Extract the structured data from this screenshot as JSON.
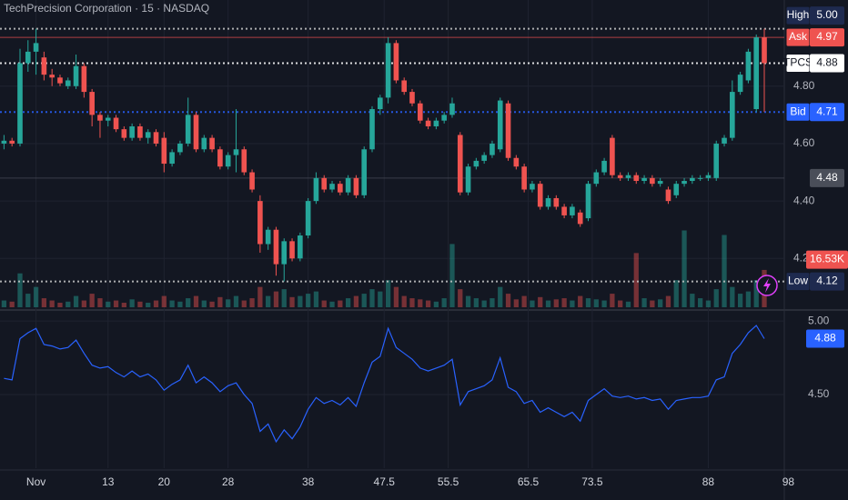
{
  "chart_data": {
    "type": "candlestick",
    "title": "TechPrecision Corporation · 15 · NASDAQ",
    "open": [
      4.6,
      4.61,
      4.6,
      4.88,
      4.92,
      4.9,
      4.84,
      4.83,
      4.8,
      4.8,
      4.87,
      4.78,
      4.7,
      4.68,
      4.69,
      4.65,
      4.62,
      4.66,
      4.62,
      4.64,
      4.62,
      4.53,
      4.57,
      4.6,
      4.7,
      4.58,
      4.62,
      4.58,
      4.52,
      4.56,
      4.58,
      4.5,
      4.4,
      4.25,
      4.3,
      4.18,
      4.26,
      4.2,
      4.28,
      4.4,
      4.48,
      4.44,
      4.46,
      4.43,
      4.48,
      4.42,
      4.58,
      4.72,
      4.76,
      4.95,
      4.82,
      4.78,
      4.74,
      4.68,
      4.66,
      4.68,
      4.7,
      4.63,
      4.43,
      4.52,
      4.54,
      4.56,
      4.58,
      4.74,
      4.55,
      4.52,
      4.44,
      4.46,
      4.38,
      4.41,
      4.38,
      4.35,
      4.36,
      4.34,
      4.46,
      4.5,
      4.62,
      4.49,
      4.48,
      4.49,
      4.47,
      4.48,
      4.46,
      4.44,
      4.42,
      4.46,
      4.47,
      4.48,
      4.48,
      4.48,
      4.6,
      4.62,
      4.78,
      4.82,
      4.72,
      4.97
    ],
    "high": [
      4.63,
      4.62,
      4.93,
      4.96,
      5.0,
      4.92,
      4.86,
      4.84,
      4.83,
      4.91,
      4.88,
      4.79,
      4.71,
      4.7,
      4.7,
      4.66,
      4.67,
      4.67,
      4.65,
      4.65,
      4.64,
      4.58,
      4.61,
      4.76,
      4.71,
      4.63,
      4.63,
      4.59,
      4.57,
      4.72,
      4.59,
      4.51,
      4.42,
      4.31,
      4.31,
      4.27,
      4.27,
      4.29,
      4.41,
      4.5,
      4.49,
      4.47,
      4.47,
      4.49,
      4.49,
      4.59,
      4.73,
      4.77,
      4.97,
      4.96,
      4.83,
      4.79,
      4.75,
      4.69,
      4.69,
      4.71,
      4.76,
      4.64,
      4.53,
      4.55,
      4.57,
      4.61,
      4.76,
      4.75,
      4.56,
      4.53,
      4.47,
      4.47,
      4.42,
      4.42,
      4.39,
      4.39,
      4.37,
      4.47,
      4.51,
      4.55,
      4.63,
      4.5,
      4.5,
      4.5,
      4.49,
      4.49,
      4.48,
      4.45,
      4.47,
      4.48,
      4.49,
      4.49,
      4.5,
      4.61,
      4.63,
      4.82,
      4.85,
      4.93,
      4.98,
      5.0
    ],
    "low": [
      4.58,
      4.59,
      4.59,
      4.85,
      4.84,
      4.82,
      4.8,
      4.8,
      4.79,
      4.79,
      4.76,
      4.66,
      4.62,
      4.66,
      4.64,
      4.61,
      4.61,
      4.61,
      4.6,
      4.59,
      4.5,
      4.52,
      4.56,
      4.59,
      4.57,
      4.57,
      4.57,
      4.51,
      4.51,
      4.5,
      4.49,
      4.43,
      4.22,
      4.23,
      4.14,
      4.12,
      4.19,
      4.19,
      4.27,
      4.39,
      4.43,
      4.43,
      4.42,
      4.42,
      4.41,
      4.41,
      4.57,
      4.7,
      4.74,
      4.81,
      4.77,
      4.73,
      4.67,
      4.65,
      4.65,
      4.67,
      4.69,
      4.42,
      4.42,
      4.51,
      4.53,
      4.55,
      4.57,
      4.54,
      4.51,
      4.43,
      4.43,
      4.37,
      4.37,
      4.37,
      4.34,
      4.34,
      4.31,
      4.33,
      4.45,
      4.49,
      4.48,
      4.47,
      4.47,
      4.46,
      4.46,
      4.45,
      4.45,
      4.39,
      4.41,
      4.45,
      4.46,
      4.47,
      4.47,
      4.47,
      4.59,
      4.61,
      4.77,
      4.81,
      4.71,
      4.71
    ],
    "close": [
      4.61,
      4.6,
      4.88,
      4.92,
      4.95,
      4.84,
      4.83,
      4.81,
      4.82,
      4.87,
      4.78,
      4.7,
      4.68,
      4.69,
      4.65,
      4.62,
      4.66,
      4.62,
      4.64,
      4.6,
      4.53,
      4.57,
      4.6,
      4.7,
      4.58,
      4.62,
      4.58,
      4.52,
      4.56,
      4.58,
      4.5,
      4.44,
      4.25,
      4.3,
      4.18,
      4.26,
      4.2,
      4.28,
      4.4,
      4.48,
      4.44,
      4.46,
      4.43,
      4.48,
      4.42,
      4.58,
      4.72,
      4.76,
      4.95,
      4.82,
      4.78,
      4.74,
      4.68,
      4.66,
      4.68,
      4.7,
      4.74,
      4.43,
      4.52,
      4.54,
      4.56,
      4.6,
      4.75,
      4.55,
      4.52,
      4.44,
      4.46,
      4.38,
      4.41,
      4.38,
      4.35,
      4.38,
      4.32,
      4.46,
      4.5,
      4.54,
      4.49,
      4.48,
      4.49,
      4.47,
      4.48,
      4.46,
      4.47,
      4.4,
      4.46,
      4.47,
      4.48,
      4.48,
      4.49,
      4.6,
      4.62,
      4.78,
      4.84,
      4.92,
      4.97,
      4.88
    ],
    "volume": [
      3000,
      2500,
      15000,
      6000,
      9000,
      4000,
      3000,
      2000,
      2500,
      5000,
      3000,
      6000,
      4000,
      2500,
      3000,
      2000,
      3500,
      2500,
      2000,
      3000,
      5000,
      3000,
      2500,
      4000,
      5000,
      3000,
      2500,
      4500,
      3500,
      5000,
      3000,
      4000,
      9000,
      5000,
      7000,
      8000,
      4500,
      5000,
      6000,
      7000,
      3000,
      2500,
      3000,
      4000,
      5000,
      6000,
      8000,
      7000,
      12000,
      9000,
      5000,
      4000,
      3500,
      3000,
      2500,
      4000,
      28000,
      8000,
      5000,
      4000,
      3000,
      4000,
      9000,
      6000,
      3500,
      5000,
      3000,
      4500,
      3000,
      3500,
      4000,
      3000,
      5000,
      4000,
      3500,
      3000,
      6000,
      3000,
      2500,
      24000,
      4000,
      3000,
      3500,
      5000,
      12000,
      34000,
      6000,
      4000,
      3000,
      8000,
      32000,
      9000,
      6000,
      7000,
      12000,
      16530
    ],
    "up_color": "#26a69a",
    "down_color": "#ef5350",
    "xlim": [
      -0.5,
      97.5
    ],
    "xticks": [
      {
        "value": 4,
        "label": "Nov"
      },
      13,
      20,
      28,
      38,
      47.5,
      55.5,
      65.5,
      73.5,
      88,
      98
    ],
    "ylim": [
      4.03,
      5.1
    ],
    "yticks": [
      {
        "value": 4.8,
        "label": "4.80"
      },
      {
        "value": 4.6,
        "label": "4.60"
      },
      {
        "value": 4.4,
        "label": "4.40"
      },
      {
        "value": 4.2,
        "label": "4.20"
      }
    ],
    "volume_lim": [
      0,
      136000
    ],
    "grid": true,
    "tags": [
      {
        "name": "High",
        "value": 5.0,
        "label": "5.00",
        "color": "#1e2a4f",
        "text_color": "#ffffff",
        "line_color": "#c8c8c8",
        "line_dash": true
      },
      {
        "name": "Ask",
        "value": 4.97,
        "label": "4.97",
        "color": "#ef5350",
        "text_color": "#ffffff",
        "line_color": "#ef5350",
        "line_dash": false
      },
      {
        "name": "TPCS",
        "value": 4.88,
        "label": "4.88",
        "color": "#ffffff",
        "text_color": "#131722",
        "line_color": "#ffffff",
        "line_dash": true
      },
      {
        "name": "Bid",
        "value": 4.71,
        "label": "4.71",
        "color": "#2962ff",
        "text_color": "#ffffff",
        "line_color": "#2962ff",
        "line_dash": true
      },
      {
        "value": 4.48,
        "label": "4.48",
        "color": "#4a4e59",
        "text_color": "#ffffff",
        "line_color": "#4a4e59",
        "line_dash": false
      }
    ],
    "volume_tag": {
      "value": 16530,
      "label": "16.53K",
      "color": "#ef5350",
      "text_color": "#ffffff"
    },
    "low_tag": {
      "name": "Low",
      "value": 4.12,
      "label": "4.12",
      "color": "#1e2a4f",
      "text_color": "#ffffff",
      "line_color": "#c8c8c8",
      "line_dash": true
    },
    "indicator": {
      "color": "#2962ff",
      "ylim": [
        4.0,
        5.05
      ],
      "yticks": [
        {
          "value": 5.0,
          "label": "5.00"
        },
        {
          "value": 4.5,
          "label": "4.50"
        }
      ],
      "last": {
        "value": 4.88,
        "label": "4.88"
      }
    }
  }
}
